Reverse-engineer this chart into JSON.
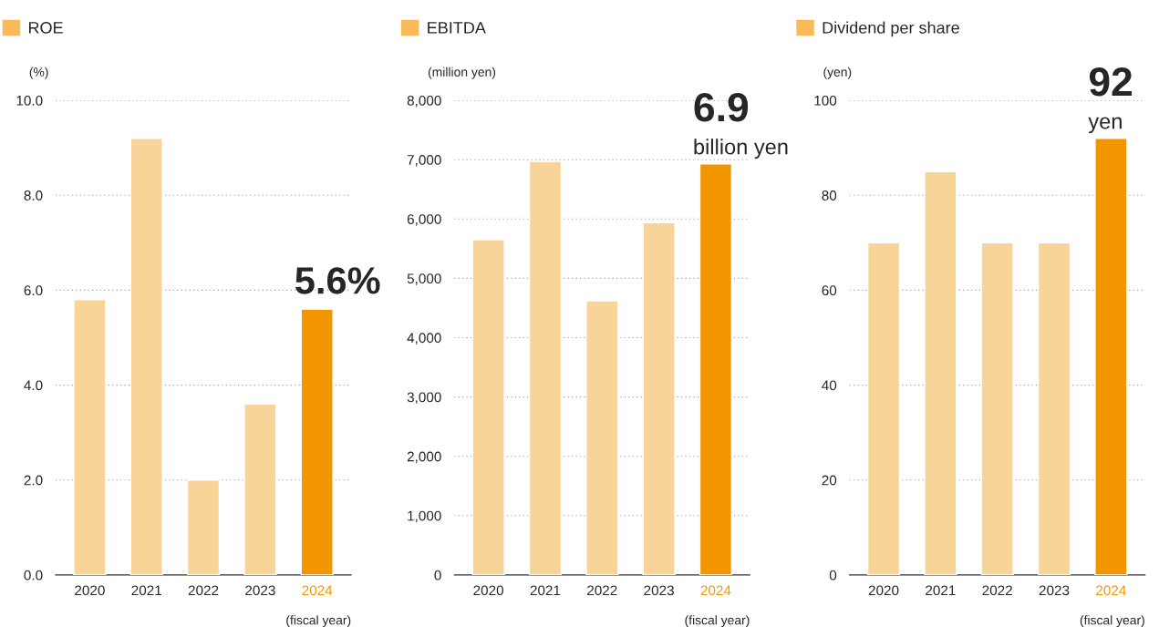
{
  "chart_data": [
    {
      "type": "bar",
      "ylabel": "(%)",
      "categories": [
        "2020",
        "2021",
        "2022",
        "2023",
        "2024"
      ],
      "series": [
        {
          "name": "ROE",
          "color": "#f9bb5a",
          "colors": [
            "#f9d498",
            "#f9d498",
            "#f9d498",
            "#f9d498",
            "#f29600"
          ],
          "values": [
            5.8,
            9.2,
            2.0,
            3.6,
            5.6
          ]
        }
      ],
      "ylim": [
        0,
        10
      ],
      "yticks": [
        {
          "value": 0,
          "label": "0.0"
        },
        {
          "value": 2,
          "label": "2.0"
        },
        {
          "value": 4,
          "label": "4.0"
        },
        {
          "value": 6,
          "label": "6.0"
        },
        {
          "value": 8,
          "label": "8.0"
        },
        {
          "value": 10,
          "label": "10.0"
        }
      ],
      "grid": "y",
      "legend": "top left",
      "annotations": [
        {
          "text": "5.6%",
          "x": "2024",
          "y": 5.6
        },
        "(fiscal year)"
      ]
    },
    {
      "type": "bar",
      "ylabel": "(million yen)",
      "categories": [
        "2020",
        "2021",
        "2022",
        "2023",
        "2024"
      ],
      "series": [
        {
          "name": "EBITDA",
          "color": "#f9bb5a",
          "colors": [
            "#f9d498",
            "#f9d498",
            "#f9d498",
            "#f9d498",
            "#f29600"
          ],
          "values": [
            5650,
            6970,
            4620,
            5940,
            6930
          ]
        }
      ],
      "ylim": [
        0,
        8000
      ],
      "yticks": [
        0,
        {
          "value": 1000,
          "label": "1,000"
        },
        {
          "value": 2000,
          "label": "2,000"
        },
        {
          "value": 3000,
          "label": "3,000"
        },
        {
          "value": 4000,
          "label": "4,000"
        },
        {
          "value": 5000,
          "label": "5,000"
        },
        {
          "value": 6000,
          "label": "6,000"
        },
        {
          "value": 7000,
          "label": "7,000"
        },
        {
          "value": 8000,
          "label": "8,000"
        }
      ],
      "grid": "y",
      "legend": "top left",
      "annotations": [
        {
          "text": "6.9",
          "x": "2024",
          "y": 6930
        },
        {
          "text": "billion yen",
          "x": "2024",
          "y": 6930
        },
        "(fiscal year)"
      ]
    },
    {
      "type": "bar",
      "ylabel": "(yen)",
      "categories": [
        "2020",
        "2021",
        "2022",
        "2023",
        "2024"
      ],
      "series": [
        {
          "name": "Dividend per share",
          "color": "#f9bb5a",
          "colors": [
            "#f9d498",
            "#f9d498",
            "#f9d498",
            "#f9d498",
            "#f29600"
          ],
          "values": [
            70,
            85,
            70,
            70,
            92
          ]
        }
      ],
      "ylim": [
        0,
        100
      ],
      "yticks": [
        0,
        20,
        40,
        60,
        80,
        100
      ],
      "grid": "y",
      "legend": "top left",
      "annotations": [
        {
          "text": "92",
          "x": "2024",
          "y": 92
        },
        {
          "text": "yen",
          "x": "2024",
          "y": 92
        },
        "(fiscal year)"
      ]
    }
  ]
}
